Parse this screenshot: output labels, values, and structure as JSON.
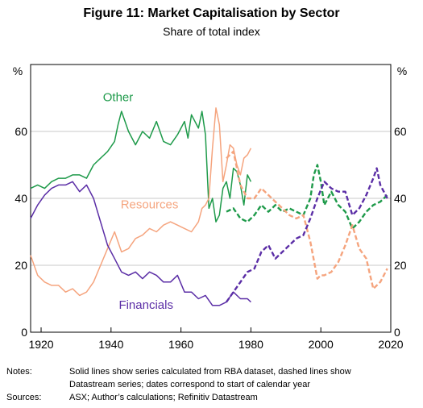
{
  "title": "Figure 11: Market Capitalisation by Sector",
  "subtitle": "Share of total index",
  "notes": {
    "label": "Notes:",
    "line1": "Solid lines show series calculated from RBA dataset, dashed lines show",
    "line2": "Datastream series; dates correspond to start of calendar year"
  },
  "sources": {
    "label": "Sources:",
    "text": "ASX; Author’s calculations; Refinitiv Datastream"
  },
  "chart_data": {
    "type": "line",
    "ylabel_left": "%",
    "ylabel_right": "%",
    "xlim": [
      1917,
      2020
    ],
    "ylim": [
      0,
      80
    ],
    "x_ticks": [
      1920,
      1940,
      1960,
      1980,
      2000,
      2020
    ],
    "y_ticks": [
      0,
      20,
      40,
      60
    ],
    "grid": true,
    "legend": "inline labels",
    "series": [
      {
        "name": "Other",
        "source": "RBA dataset",
        "style": "solid",
        "color": "#1e9a4a",
        "x": [
          1917,
          1919,
          1921,
          1923,
          1925,
          1927,
          1929,
          1931,
          1933,
          1935,
          1937,
          1939,
          1941,
          1942,
          1943,
          1945,
          1947,
          1949,
          1951,
          1953,
          1955,
          1957,
          1959,
          1961,
          1962,
          1963,
          1965,
          1966,
          1967,
          1968,
          1969,
          1970,
          1971,
          1972,
          1973,
          1974,
          1975,
          1976,
          1977,
          1978,
          1979,
          1980
        ],
        "values": [
          43,
          44,
          43,
          45,
          46,
          46,
          47,
          47,
          46,
          50,
          52,
          54,
          57,
          62,
          66,
          60,
          56,
          60,
          58,
          63,
          57,
          56,
          59,
          63,
          58,
          65,
          61,
          66,
          59,
          37,
          40,
          33,
          35,
          43,
          45,
          40,
          49,
          48,
          44,
          38,
          47,
          45
        ]
      },
      {
        "name": "Resources",
        "source": "RBA dataset",
        "style": "solid",
        "color": "#f5a47e",
        "x": [
          1917,
          1919,
          1921,
          1923,
          1925,
          1927,
          1929,
          1931,
          1933,
          1935,
          1937,
          1939,
          1941,
          1943,
          1945,
          1947,
          1949,
          1951,
          1953,
          1955,
          1957,
          1959,
          1961,
          1963,
          1965,
          1966,
          1967,
          1968,
          1969,
          1970,
          1971,
          1972,
          1973,
          1974,
          1975,
          1976,
          1977,
          1978,
          1979,
          1980
        ],
        "values": [
          23,
          17,
          15,
          14,
          14,
          12,
          13,
          11,
          12,
          15,
          20,
          25,
          30,
          24,
          25,
          28,
          29,
          31,
          30,
          32,
          33,
          32,
          31,
          30,
          33,
          37,
          38,
          40,
          55,
          67,
          62,
          45,
          50,
          56,
          55,
          50,
          47,
          52,
          53,
          55
        ]
      },
      {
        "name": "Financials",
        "source": "RBA dataset",
        "style": "solid",
        "color": "#5b2ea6",
        "x": [
          1917,
          1919,
          1921,
          1923,
          1925,
          1927,
          1929,
          1931,
          1933,
          1935,
          1937,
          1939,
          1941,
          1943,
          1945,
          1947,
          1949,
          1951,
          1953,
          1955,
          1957,
          1959,
          1961,
          1963,
          1965,
          1967,
          1969,
          1971,
          1973,
          1975,
          1977,
          1979,
          1980
        ],
        "values": [
          34,
          38,
          41,
          43,
          44,
          44,
          45,
          42,
          44,
          40,
          33,
          26,
          22,
          18,
          17,
          18,
          16,
          18,
          17,
          15,
          15,
          17,
          12,
          12,
          10,
          11,
          8,
          8,
          9,
          12,
          10,
          10,
          9
        ]
      },
      {
        "name": "Other",
        "source": "Datastream",
        "style": "dashed",
        "color": "#1e9a4a",
        "x": [
          1973,
          1975,
          1977,
          1979,
          1981,
          1983,
          1985,
          1987,
          1989,
          1991,
          1993,
          1995,
          1997,
          1998,
          1999,
          2000,
          2001,
          2003,
          2005,
          2007,
          2009,
          2011,
          2013,
          2015,
          2017,
          2019
        ],
        "values": [
          36,
          37,
          34,
          33,
          35,
          38,
          36,
          38,
          36,
          37,
          36,
          35,
          40,
          47,
          50,
          45,
          38,
          42,
          38,
          36,
          31,
          33,
          36,
          38,
          39,
          41
        ]
      },
      {
        "name": "Resources",
        "source": "Datastream",
        "style": "dashed",
        "color": "#f5a47e",
        "x": [
          1973,
          1975,
          1977,
          1979,
          1981,
          1983,
          1985,
          1987,
          1989,
          1991,
          1993,
          1995,
          1997,
          1999,
          2000,
          2001,
          2003,
          2005,
          2007,
          2009,
          2011,
          2013,
          2015,
          2017,
          2019
        ],
        "values": [
          52,
          54,
          44,
          40,
          40,
          43,
          41,
          39,
          37,
          35,
          34,
          35,
          27,
          16,
          17,
          17,
          18,
          21,
          26,
          32,
          25,
          22,
          13,
          15,
          19
        ]
      },
      {
        "name": "Financials",
        "source": "Datastream",
        "style": "dashed",
        "color": "#5b2ea6",
        "x": [
          1973,
          1975,
          1977,
          1979,
          1981,
          1983,
          1985,
          1987,
          1989,
          1991,
          1993,
          1995,
          1997,
          1999,
          2001,
          2003,
          2005,
          2007,
          2009,
          2011,
          2013,
          2015,
          2016,
          2017,
          2019
        ],
        "values": [
          9,
          12,
          15,
          18,
          19,
          24,
          26,
          22,
          24,
          26,
          28,
          29,
          34,
          40,
          45,
          43,
          42,
          42,
          35,
          37,
          41,
          46,
          49,
          44,
          40
        ]
      }
    ],
    "labels": [
      {
        "text": "Other",
        "color": "#1e9a4a",
        "x": 1942,
        "y": 69
      },
      {
        "text": "Resources",
        "color": "#f5a47e",
        "x": 1951,
        "y": 37
      },
      {
        "text": "Financials",
        "color": "#5b2ea6",
        "x": 1950,
        "y": 7
      }
    ]
  }
}
